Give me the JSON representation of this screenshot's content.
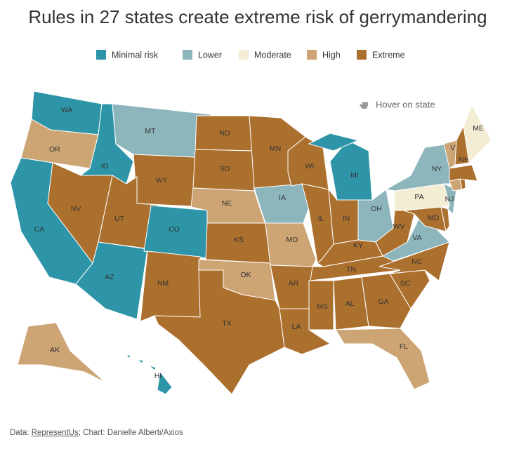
{
  "title": "Rules in 27 states create extreme risk of gerrymandering",
  "legend": [
    {
      "name": "Minimal risk",
      "color": "#2e95a8"
    },
    {
      "name": "Lower",
      "color": "#8db6bc"
    },
    {
      "name": "Moderate",
      "color": "#f3edd3"
    },
    {
      "name": "High",
      "color": "#cda473"
    },
    {
      "name": "Extreme",
      "color": "#ac702e"
    }
  ],
  "hover_hint": "Hover on state",
  "states": [
    {
      "label": "WA",
      "risk": "Minimal risk"
    },
    {
      "label": "OR",
      "risk": "High"
    },
    {
      "label": "CA",
      "risk": "Minimal risk"
    },
    {
      "label": "ID",
      "risk": "Minimal risk"
    },
    {
      "label": "NV",
      "risk": "Extreme"
    },
    {
      "label": "MT",
      "risk": "Lower"
    },
    {
      "label": "WY",
      "risk": "Extreme"
    },
    {
      "label": "UT",
      "risk": "Extreme"
    },
    {
      "label": "AZ",
      "risk": "Minimal risk"
    },
    {
      "label": "CO",
      "risk": "Minimal risk"
    },
    {
      "label": "NM",
      "risk": "Extreme"
    },
    {
      "label": "ND",
      "risk": "Extreme"
    },
    {
      "label": "SD",
      "risk": "Extreme"
    },
    {
      "label": "NE",
      "risk": "High"
    },
    {
      "label": "KS",
      "risk": "Extreme"
    },
    {
      "label": "OK",
      "risk": "High"
    },
    {
      "label": "TX",
      "risk": "Extreme"
    },
    {
      "label": "MN",
      "risk": "Extreme"
    },
    {
      "label": "IA",
      "risk": "Lower"
    },
    {
      "label": "MO",
      "risk": "High"
    },
    {
      "label": "AR",
      "risk": "Extreme"
    },
    {
      "label": "LA",
      "risk": "Extreme"
    },
    {
      "label": "WI",
      "risk": "Extreme"
    },
    {
      "label": "IL",
      "risk": "Extreme"
    },
    {
      "label": "MI",
      "risk": "Minimal risk"
    },
    {
      "label": "IN",
      "risk": "Extreme"
    },
    {
      "label": "OH",
      "risk": "Lower"
    },
    {
      "label": "KY",
      "risk": "Extreme"
    },
    {
      "label": "TN",
      "risk": "Extreme"
    },
    {
      "label": "MS",
      "risk": "Extreme"
    },
    {
      "label": "AL",
      "risk": "Extreme"
    },
    {
      "label": "GA",
      "risk": "Extreme"
    },
    {
      "label": "FL",
      "risk": "High"
    },
    {
      "label": "SC",
      "risk": "Extreme"
    },
    {
      "label": "NC",
      "risk": "Extreme"
    },
    {
      "label": "VA",
      "risk": "Lower"
    },
    {
      "label": "WV",
      "risk": "Extreme"
    },
    {
      "label": "MD",
      "risk": "Extreme"
    },
    {
      "label": null,
      "risk": "Extreme"
    },
    {
      "label": "PA",
      "risk": "Moderate"
    },
    {
      "label": "NJ",
      "risk": "Lower"
    },
    {
      "label": "NY",
      "risk": "Lower"
    },
    {
      "label": null,
      "risk": "High"
    },
    {
      "label": null,
      "risk": "Extreme"
    },
    {
      "label": null,
      "risk": "Extreme"
    },
    {
      "label": "VT",
      "risk": "High"
    },
    {
      "label": "NH",
      "risk": "Extreme"
    },
    {
      "label": "ME",
      "risk": "Moderate"
    },
    {
      "label": "AK",
      "risk": "High"
    },
    {
      "label": "HI",
      "risk": "Minimal risk"
    }
  ],
  "footer": {
    "prefix": "Data:",
    "source": "RepresentUs",
    "credit": "; Chart: Danielle Alberti/Axios"
  }
}
